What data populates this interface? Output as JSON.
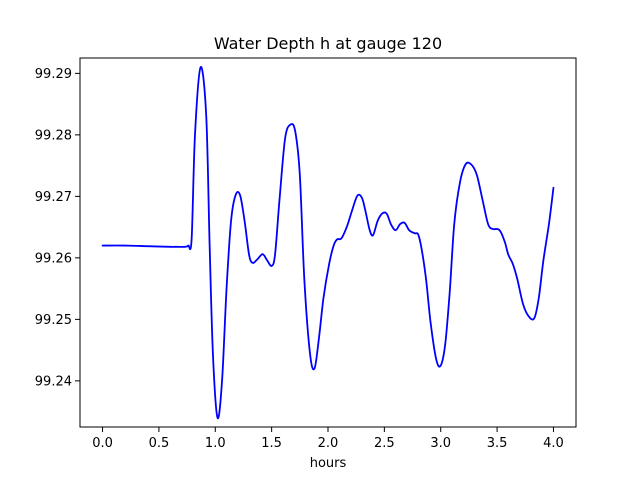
{
  "chart_data": {
    "type": "line",
    "title": "Water Depth h at gauge 120",
    "xlabel": "hours",
    "ylabel": "",
    "xlim": [
      -0.2,
      4.2
    ],
    "ylim": [
      99.2325,
      99.2925
    ],
    "xticks": [
      0.0,
      0.5,
      1.0,
      1.5,
      2.0,
      2.5,
      3.0,
      3.5,
      4.0
    ],
    "xtick_labels": [
      "0.0",
      "0.5",
      "1.0",
      "1.5",
      "2.0",
      "2.5",
      "3.0",
      "3.5",
      "4.0"
    ],
    "yticks": [
      99.24,
      99.25,
      99.26,
      99.27,
      99.28,
      99.29
    ],
    "ytick_labels": [
      "99.24",
      "99.25",
      "99.26",
      "99.27",
      "99.28",
      "99.29"
    ],
    "grid": false,
    "colors": {
      "line": "#0000ff",
      "axes": "#000000",
      "background": "#ffffff"
    },
    "series": [
      {
        "x": [
          0.0,
          0.2,
          0.4,
          0.6,
          0.66,
          0.73,
          0.76,
          0.79,
          0.82,
          0.87,
          0.92,
          0.95,
          0.98,
          1.02,
          1.06,
          1.1,
          1.14,
          1.18,
          1.22,
          1.26,
          1.3,
          1.33,
          1.37,
          1.42,
          1.46,
          1.5,
          1.53,
          1.57,
          1.62,
          1.67,
          1.71,
          1.75,
          1.79,
          1.84,
          1.88,
          1.92,
          1.96,
          2.01,
          2.05,
          2.08,
          2.12,
          2.17,
          2.21,
          2.26,
          2.3,
          2.33,
          2.37,
          2.4,
          2.44,
          2.48,
          2.52,
          2.56,
          2.6,
          2.64,
          2.68,
          2.72,
          2.77,
          2.8,
          2.83,
          2.87,
          2.91,
          2.96,
          3.0,
          3.04,
          3.08,
          3.12,
          3.17,
          3.22,
          3.27,
          3.32,
          3.37,
          3.42,
          3.46,
          3.5,
          3.53,
          3.57,
          3.6,
          3.64,
          3.68,
          3.73,
          3.78,
          3.83,
          3.87,
          3.91,
          3.96,
          4.0
        ],
        "y": [
          99.262,
          99.262,
          99.2619,
          99.2618,
          99.2618,
          99.2618,
          99.262,
          99.263,
          99.28,
          99.291,
          99.283,
          99.262,
          99.244,
          99.234,
          99.24,
          99.255,
          99.266,
          99.2702,
          99.2702,
          99.266,
          99.2605,
          99.2592,
          99.2597,
          99.2606,
          99.2596,
          99.2587,
          99.2605,
          99.2695,
          99.2795,
          99.2817,
          99.2805,
          99.2735,
          99.2565,
          99.2445,
          99.242,
          99.247,
          99.2535,
          99.259,
          99.262,
          99.263,
          99.2632,
          99.2652,
          99.2675,
          99.2701,
          99.2698,
          99.2678,
          99.2645,
          99.2637,
          99.266,
          99.2672,
          99.2672,
          99.2654,
          99.2645,
          99.2655,
          99.2657,
          99.2645,
          99.264,
          99.2638,
          99.2615,
          99.2565,
          99.2495,
          99.2435,
          99.2425,
          99.246,
          99.2545,
          99.2655,
          99.2722,
          99.2752,
          99.2752,
          99.2735,
          99.2695,
          99.2655,
          99.2647,
          99.2647,
          99.2643,
          99.2625,
          99.2605,
          99.259,
          99.2565,
          99.2525,
          99.2505,
          99.2502,
          99.2535,
          99.2595,
          99.2655,
          99.2714
        ]
      }
    ]
  }
}
